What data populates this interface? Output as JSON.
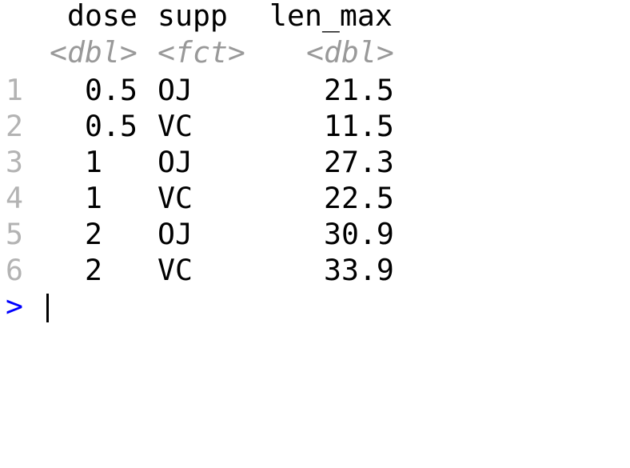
{
  "console": {
    "columns": [
      {
        "name": "dose",
        "type": "<dbl>"
      },
      {
        "name": "supp",
        "type": "<fct>"
      },
      {
        "name": "len_max",
        "type": "<dbl>"
      }
    ],
    "rows": [
      {
        "index": "1",
        "dose": "0.5",
        "supp": "OJ",
        "len_max": "21.5"
      },
      {
        "index": "2",
        "dose": "0.5",
        "supp": "VC",
        "len_max": "11.5"
      },
      {
        "index": "3",
        "dose": "1",
        "supp": "OJ",
        "len_max": "27.3"
      },
      {
        "index": "4",
        "dose": "1",
        "supp": "VC",
        "len_max": "22.5"
      },
      {
        "index": "5",
        "dose": "2",
        "supp": "OJ",
        "len_max": "30.9"
      },
      {
        "index": "6",
        "dose": "2",
        "supp": "VC",
        "len_max": "33.9"
      }
    ],
    "prompt": ">",
    "colors": {
      "prompt": "#0000ff",
      "row_index": "#b3b3b3",
      "type_annotation": "#999999",
      "text": "#000000"
    }
  }
}
